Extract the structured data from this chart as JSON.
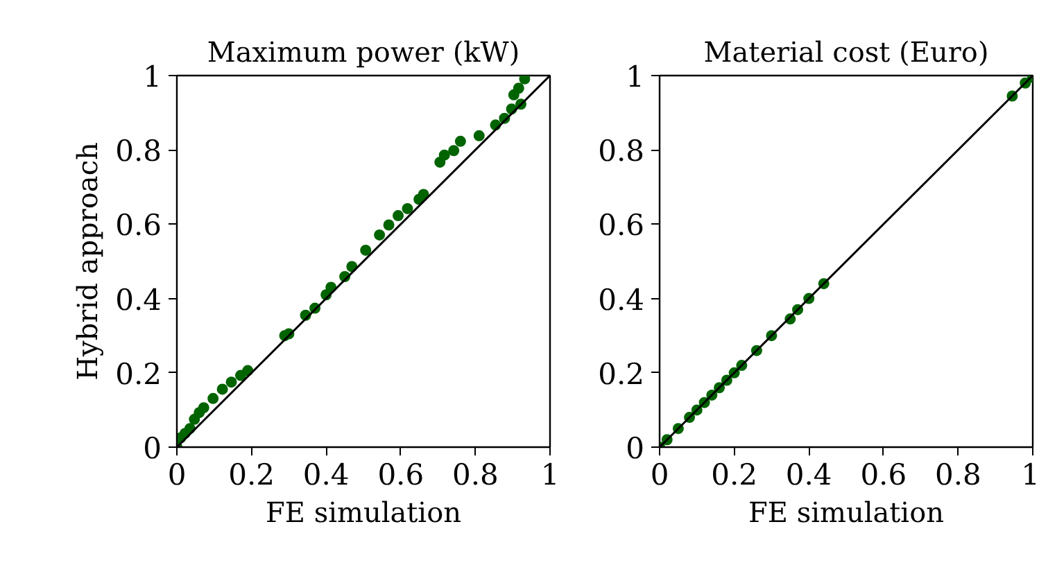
{
  "chart_data": [
    {
      "type": "scatter",
      "title": "Maximum power (kW)",
      "xlabel": "FE simulation",
      "ylabel": "Hybrid approach",
      "xlim": [
        0,
        1
      ],
      "ylim": [
        0,
        1
      ],
      "xticks": [
        0,
        0.2,
        0.4,
        0.6,
        0.8,
        1
      ],
      "yticks": [
        0,
        0.2,
        0.4,
        0.6,
        0.8,
        1
      ],
      "series": [
        {
          "marker": "circle",
          "color": "#006400",
          "x": [
            0,
            0.01,
            0.022,
            0.035,
            0.047,
            0.06,
            0.072,
            0.097,
            0.122,
            0.146,
            0.171,
            0.19,
            0.289,
            0.3,
            0.345,
            0.37,
            0.4,
            0.413,
            0.45,
            0.469,
            0.506,
            0.543,
            0.568,
            0.593,
            0.618,
            0.649,
            0.661,
            0.705,
            0.717,
            0.742,
            0.76,
            0.81,
            0.854,
            0.878,
            0.897,
            0.903,
            0.922,
            0.916,
            0.932
          ],
          "values": [
            0,
            0.025,
            0.037,
            0.05,
            0.075,
            0.093,
            0.106,
            0.131,
            0.156,
            0.175,
            0.193,
            0.206,
            0.3,
            0.305,
            0.355,
            0.374,
            0.41,
            0.43,
            0.459,
            0.486,
            0.53,
            0.571,
            0.598,
            0.623,
            0.642,
            0.667,
            0.68,
            0.767,
            0.786,
            0.798,
            0.823,
            0.838,
            0.867,
            0.885,
            0.91,
            0.948,
            0.923,
            0.966,
            0.991
          ]
        },
        {
          "type": "line",
          "color": "#000000",
          "x": [
            0,
            1
          ],
          "values": [
            0,
            1
          ]
        }
      ]
    },
    {
      "type": "scatter",
      "title": "Material cost (Euro)",
      "xlabel": "FE simulation",
      "xlim": [
        0,
        1
      ],
      "ylim": [
        0,
        1
      ],
      "xticks": [
        0,
        0.2,
        0.4,
        0.6,
        0.8,
        1
      ],
      "yticks": [
        0,
        0.2,
        0.4,
        0.6,
        0.8,
        1
      ],
      "series": [
        {
          "marker": "circle",
          "color": "#006400",
          "x": [
            0,
            0.02,
            0.05,
            0.08,
            0.1,
            0.12,
            0.14,
            0.16,
            0.18,
            0.2,
            0.22,
            0.26,
            0.3,
            0.35,
            0.37,
            0.4,
            0.44,
            0.945,
            0.98,
            1.0
          ],
          "values": [
            0,
            0.02,
            0.05,
            0.08,
            0.1,
            0.12,
            0.14,
            0.16,
            0.18,
            0.2,
            0.22,
            0.26,
            0.3,
            0.345,
            0.37,
            0.4,
            0.44,
            0.945,
            0.98,
            0.995
          ]
        },
        {
          "type": "line",
          "color": "#000000",
          "x": [
            0,
            1
          ],
          "values": [
            0,
            1
          ]
        }
      ]
    }
  ]
}
